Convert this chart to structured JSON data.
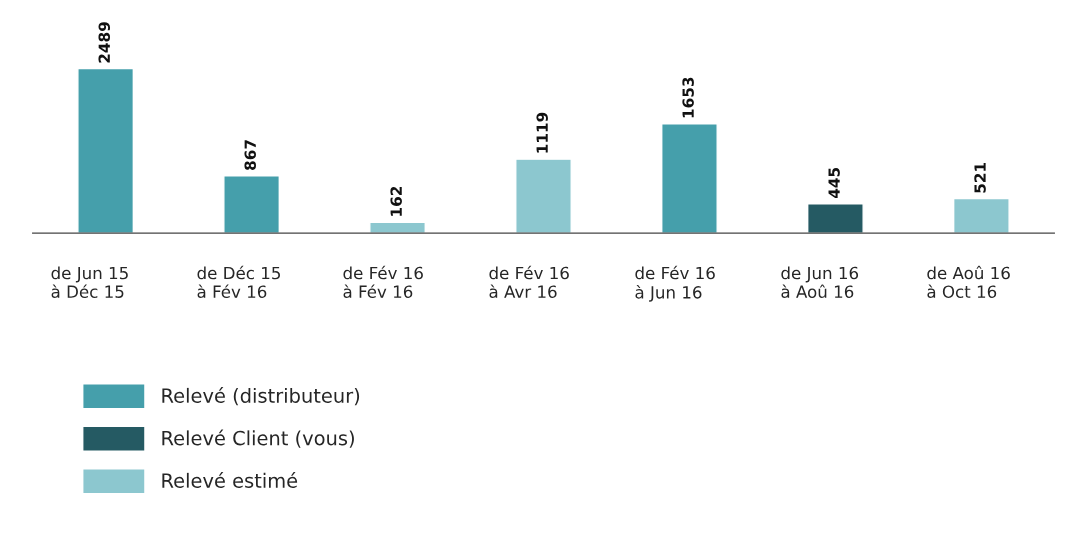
{
  "chart_data": {
    "type": "bar",
    "stacked": true,
    "data_labels": true,
    "legend": "bottom left",
    "categories": [
      "de Jun 15\nà Déc 15",
      "de Déc 15\nà Fév 16",
      "de Fév 16\nà Fév 16",
      "de Fév 16\nà Avr 16",
      "de Fév 16\nà Jun 16",
      "de Jun 16\nà Aoû 16",
      "de Aoû 16\nà Oct 16"
    ],
    "series": [
      {
        "name": "Relevé (distributeur)",
        "color": "#459fab",
        "values": [
          2489,
          867,
          null,
          null,
          1653,
          null,
          null
        ]
      },
      {
        "name": "Relevé Client (vous)",
        "color": "#255a63",
        "values": [
          null,
          null,
          null,
          null,
          null,
          445,
          null
        ]
      },
      {
        "name": "Relevé estimé",
        "color": "#8cc7cf",
        "values": [
          null,
          null,
          162,
          1119,
          null,
          null,
          521
        ]
      }
    ]
  }
}
